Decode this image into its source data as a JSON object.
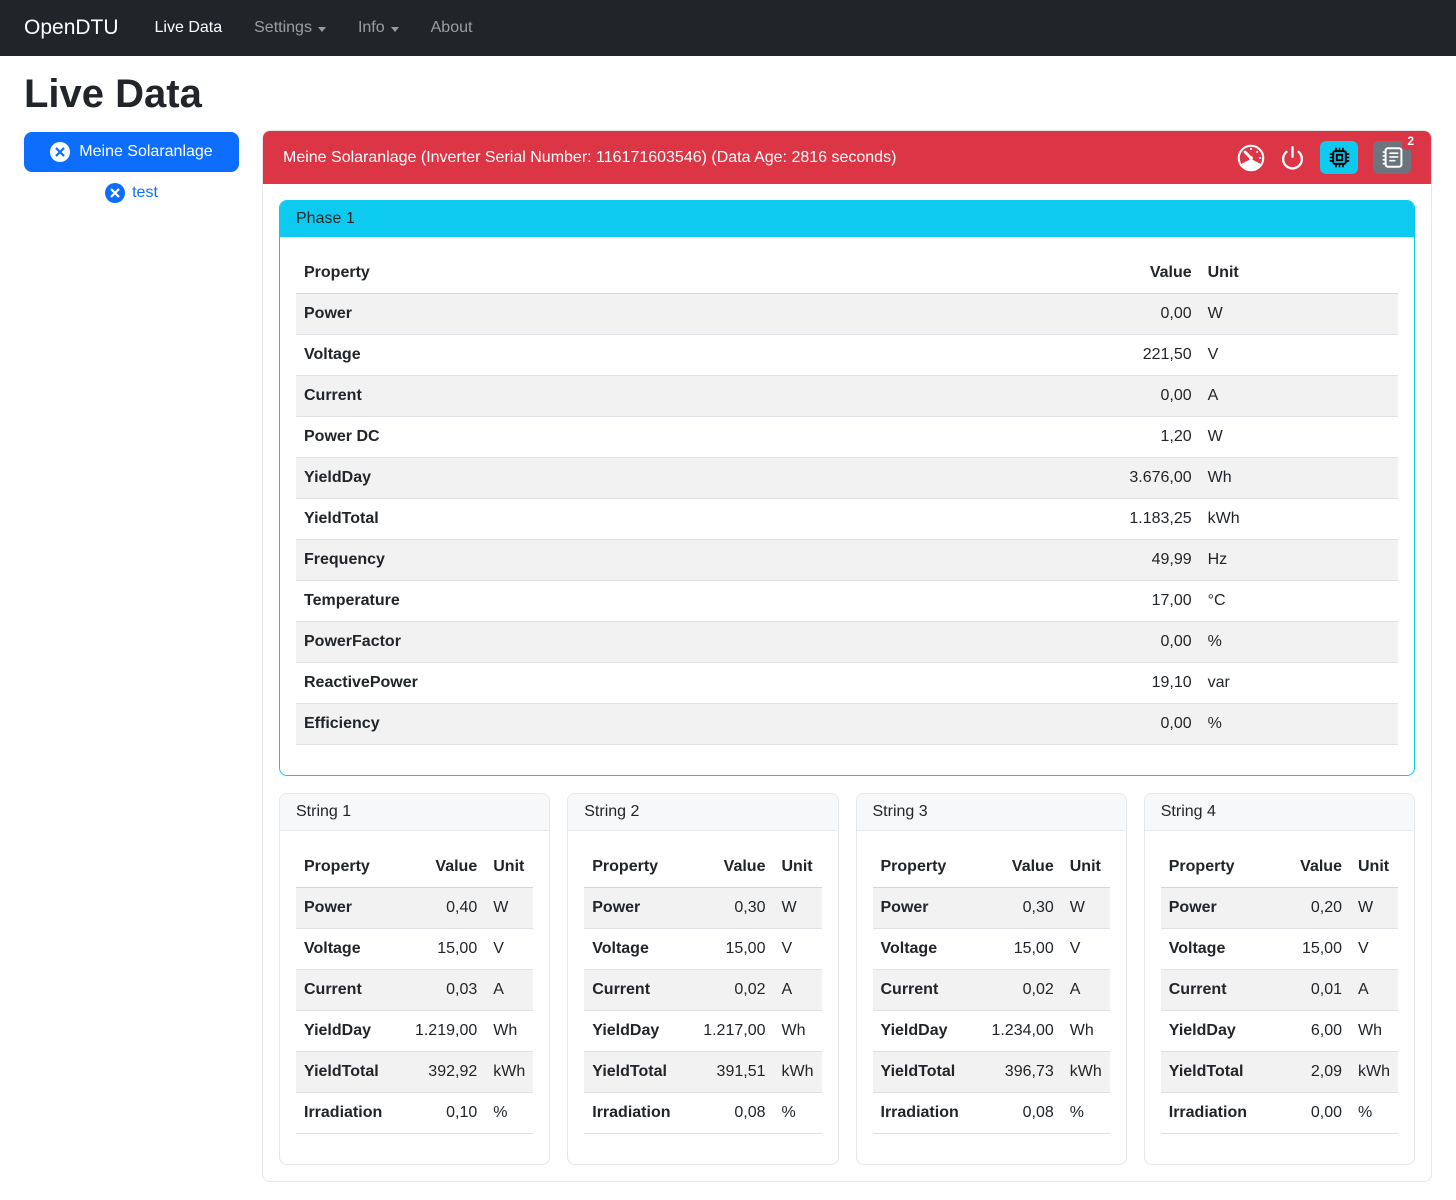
{
  "navbar": {
    "brand": "OpenDTU",
    "items": [
      {
        "label": "Live Data",
        "active": true,
        "dropdown": false
      },
      {
        "label": "Settings",
        "active": false,
        "dropdown": true
      },
      {
        "label": "Info",
        "active": false,
        "dropdown": true
      },
      {
        "label": "About",
        "active": false,
        "dropdown": false
      }
    ]
  },
  "page": {
    "title": "Live Data"
  },
  "sidebar": {
    "selected_inverter": "Meine Solaranlage",
    "other_inverter": "test"
  },
  "inverter": {
    "header": "Meine Solaranlage (Inverter Serial Number: 116171603546) (Data Age: 2816 seconds)",
    "badge_count": "2",
    "icons": [
      "speedometer-icon",
      "power-icon",
      "cpu-icon",
      "journal-icon"
    ]
  },
  "table_columns": [
    "Property",
    "Value",
    "Unit"
  ],
  "phase": {
    "title": "Phase 1",
    "rows": [
      [
        "Power",
        "0,00",
        "W"
      ],
      [
        "Voltage",
        "221,50",
        "V"
      ],
      [
        "Current",
        "0,00",
        "A"
      ],
      [
        "Power DC",
        "1,20",
        "W"
      ],
      [
        "YieldDay",
        "3.676,00",
        "Wh"
      ],
      [
        "YieldTotal",
        "1.183,25",
        "kWh"
      ],
      [
        "Frequency",
        "49,99",
        "Hz"
      ],
      [
        "Temperature",
        "17,00",
        "°C"
      ],
      [
        "PowerFactor",
        "0,00",
        "%"
      ],
      [
        "ReactivePower",
        "19,10",
        "var"
      ],
      [
        "Efficiency",
        "0,00",
        "%"
      ]
    ]
  },
  "strings": [
    {
      "title": "String 1",
      "rows": [
        [
          "Power",
          "0,40",
          "W"
        ],
        [
          "Voltage",
          "15,00",
          "V"
        ],
        [
          "Current",
          "0,03",
          "A"
        ],
        [
          "YieldDay",
          "1.219,00",
          "Wh"
        ],
        [
          "YieldTotal",
          "392,92",
          "kWh"
        ],
        [
          "Irradiation",
          "0,10",
          "%"
        ]
      ]
    },
    {
      "title": "String 2",
      "rows": [
        [
          "Power",
          "0,30",
          "W"
        ],
        [
          "Voltage",
          "15,00",
          "V"
        ],
        [
          "Current",
          "0,02",
          "A"
        ],
        [
          "YieldDay",
          "1.217,00",
          "Wh"
        ],
        [
          "YieldTotal",
          "391,51",
          "kWh"
        ],
        [
          "Irradiation",
          "0,08",
          "%"
        ]
      ]
    },
    {
      "title": "String 3",
      "rows": [
        [
          "Power",
          "0,30",
          "W"
        ],
        [
          "Voltage",
          "15,00",
          "V"
        ],
        [
          "Current",
          "0,02",
          "A"
        ],
        [
          "YieldDay",
          "1.234,00",
          "Wh"
        ],
        [
          "YieldTotal",
          "396,73",
          "kWh"
        ],
        [
          "Irradiation",
          "0,08",
          "%"
        ]
      ]
    },
    {
      "title": "String 4",
      "rows": [
        [
          "Power",
          "0,20",
          "W"
        ],
        [
          "Voltage",
          "15,00",
          "V"
        ],
        [
          "Current",
          "0,01",
          "A"
        ],
        [
          "YieldDay",
          "6,00",
          "Wh"
        ],
        [
          "YieldTotal",
          "2,09",
          "kWh"
        ],
        [
          "Irradiation",
          "0,00",
          "%"
        ]
      ]
    }
  ],
  "colors": {
    "navbar_bg": "#212529",
    "primary": "#0d6efd",
    "danger": "#dc3545",
    "info": "#0dcaf0",
    "secondary": "#6c757d",
    "stripe": "#f2f2f2",
    "border": "#dee2e6"
  }
}
